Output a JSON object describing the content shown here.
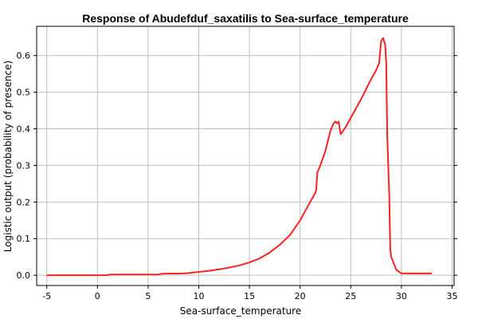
{
  "chart_data": {
    "type": "line",
    "title": "Response of Abudefduf_saxatilis to Sea-surface_temperature",
    "xlabel": "Sea-surface_temperature",
    "ylabel": "Logistic output (probability of presence)",
    "xlim": [
      -6,
      35.2
    ],
    "ylim": [
      -0.028,
      0.68
    ],
    "xticks": [
      -5,
      0,
      5,
      10,
      15,
      20,
      25,
      30,
      35
    ],
    "yticks": [
      0.0,
      0.1,
      0.2,
      0.3,
      0.4,
      0.5,
      0.6
    ],
    "ytick_labels": [
      "0.0",
      "0.1",
      "0.2",
      "0.3",
      "0.4",
      "0.5",
      "0.6"
    ],
    "grid": true,
    "line_color": "#ff2020",
    "series": [
      {
        "x": [
          -5,
          1,
          1.2,
          6,
          6.3,
          8.5,
          9,
          10,
          11,
          12,
          13,
          14,
          15,
          16,
          17,
          18,
          19,
          20,
          20.5,
          21,
          21.5,
          21.6,
          21.7,
          22,
          22.5,
          23,
          23.3,
          23.5,
          23.6,
          23.8,
          24,
          24.5,
          25,
          26,
          27,
          27.5,
          27.8,
          28,
          28.2,
          28.4,
          28.5,
          28.6,
          28.8,
          28.9,
          29,
          29.5,
          30,
          33
        ],
        "y": [
          0.0,
          0.0,
          0.002,
          0.002,
          0.004,
          0.005,
          0.006,
          0.009,
          0.012,
          0.016,
          0.021,
          0.027,
          0.035,
          0.046,
          0.062,
          0.083,
          0.11,
          0.15,
          0.175,
          0.2,
          0.225,
          0.235,
          0.28,
          0.3,
          0.34,
          0.395,
          0.415,
          0.42,
          0.415,
          0.42,
          0.385,
          0.405,
          0.43,
          0.48,
          0.535,
          0.56,
          0.58,
          0.64,
          0.648,
          0.63,
          0.58,
          0.38,
          0.22,
          0.07,
          0.05,
          0.015,
          0.005,
          0.005
        ]
      }
    ]
  }
}
